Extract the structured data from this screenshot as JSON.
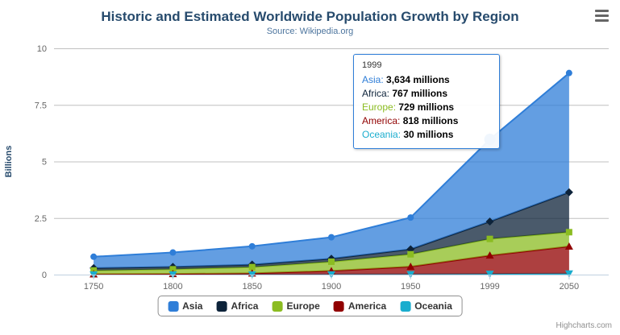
{
  "title": "Historic and Estimated Worldwide Population Growth by Region",
  "subtitle": "Source: Wikipedia.org",
  "credits": "Highcharts.com",
  "export_menu_icon": "hamburger-menu",
  "colors": {
    "title": "#274b6d",
    "subtitle": "#4d759e",
    "axis_labels": "#666666",
    "gridline": "#c0c0c0",
    "axis_line": "#c0d0e0",
    "legend_border": "#909090"
  },
  "tooltip": {
    "header": "1999",
    "border_color": "#2f7ed8",
    "rows": [
      {
        "name": "Asia",
        "value": "3,634 millions",
        "color": "#2f7ed8"
      },
      {
        "name": "Africa",
        "value": "767 millions",
        "color": "#0d233a"
      },
      {
        "name": "Europe",
        "value": "729 millions",
        "color": "#8bbc21"
      },
      {
        "name": "America",
        "value": "818 millions",
        "color": "#910000"
      },
      {
        "name": "Oceania",
        "value": "30 millions",
        "color": "#1aadce"
      }
    ]
  },
  "legend": {
    "position": "bottom-center",
    "items": [
      {
        "label": "Asia",
        "color": "#2f7ed8"
      },
      {
        "label": "Africa",
        "color": "#0d233a"
      },
      {
        "label": "Europe",
        "color": "#8bbc21"
      },
      {
        "label": "America",
        "color": "#910000"
      },
      {
        "label": "Oceania",
        "color": "#1aadce"
      }
    ]
  },
  "chart_data": {
    "type": "area",
    "stacking": "normal",
    "title": "Historic and Estimated Worldwide Population Growth by Region",
    "subtitle": "Source: Wikipedia.org",
    "xlabel": "",
    "ylabel": "Billions",
    "value_unit": "millions",
    "categories": [
      "1750",
      "1800",
      "1850",
      "1900",
      "1950",
      "1999",
      "2050"
    ],
    "yticks": [
      0,
      2.5,
      5,
      7.5,
      10
    ],
    "ylim": [
      0,
      10
    ],
    "grid": true,
    "legend_position": "bottom",
    "fill_opacity": 0.75,
    "series": [
      {
        "name": "Asia",
        "color": "#2f7ed8",
        "marker": "circle",
        "values_millions": [
          502,
          635,
          809,
          947,
          1402,
          3634,
          5268
        ]
      },
      {
        "name": "Africa",
        "color": "#0d233a",
        "marker": "diamond",
        "values_millions": [
          106,
          107,
          111,
          133,
          221,
          767,
          1766
        ]
      },
      {
        "name": "Europe",
        "color": "#8bbc21",
        "marker": "square",
        "values_millions": [
          163,
          203,
          276,
          408,
          547,
          729,
          628
        ]
      },
      {
        "name": "America",
        "color": "#910000",
        "marker": "triangle",
        "values_millions": [
          18,
          31,
          54,
          156,
          339,
          818,
          1201
        ]
      },
      {
        "name": "Oceania",
        "color": "#1aadce",
        "marker": "triangle-down",
        "values_millions": [
          2,
          2,
          2,
          6,
          13,
          30,
          46
        ]
      }
    ],
    "hover_point": {
      "series": "Asia",
      "category": "1999"
    }
  }
}
